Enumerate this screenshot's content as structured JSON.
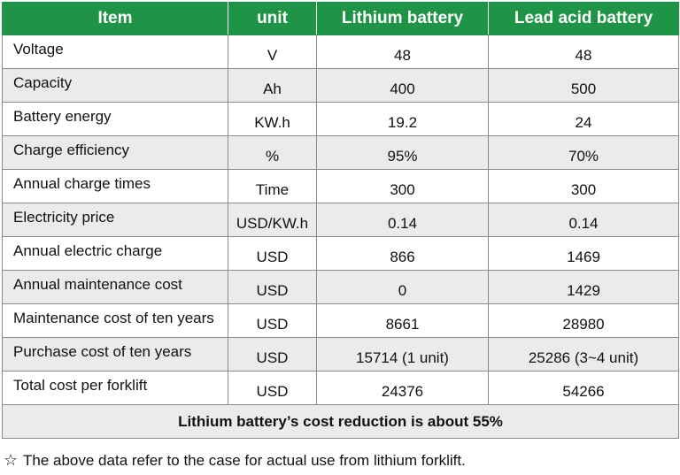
{
  "table": {
    "headers": [
      "Item",
      "unit",
      "Lithium battery",
      "Lead acid  battery"
    ],
    "rows": [
      {
        "item": "Voltage",
        "unit": "V",
        "lithium": "48",
        "lead": "48"
      },
      {
        "item": "Capacity",
        "unit": "Ah",
        "lithium": "400",
        "lead": "500"
      },
      {
        "item": "Battery energy",
        "unit": "KW.h",
        "lithium": "19.2",
        "lead": "24"
      },
      {
        "item": "Charge efficiency",
        "unit": "%",
        "lithium": "95%",
        "lead": "70%"
      },
      {
        "item": "Annual charge times",
        "unit": "Time",
        "lithium": "300",
        "lead": "300"
      },
      {
        "item": "Electricity price",
        "unit": "USD/KW.h",
        "lithium": "0.14",
        "lead": "0.14"
      },
      {
        "item": "Annual electric charge",
        "unit": "USD",
        "lithium": "866",
        "lead": "1469"
      },
      {
        "item": "Annual maintenance cost",
        "unit": "USD",
        "lithium": "0",
        "lead": "1429"
      },
      {
        "item": "Maintenance cost of ten years",
        "unit": "USD",
        "lithium": "8661",
        "lead": "28980"
      },
      {
        "item": "Purchase cost of ten years",
        "unit": "USD",
        "lithium": "15714 (1 unit)",
        "lead": "25286 (3~4 unit)"
      },
      {
        "item": "Total cost per forklift",
        "unit": "USD",
        "lithium": "24376",
        "lead": "54266"
      }
    ],
    "summary": "Lithium battery’s cost reduction is about 55%"
  },
  "footnote": {
    "icon": "star-outline-icon",
    "symbol": "☆",
    "text": "The above data refer to the case for actual use from lithium forklift."
  },
  "colors": {
    "header_bg": "#1f9446",
    "header_text": "#ffffff",
    "row_shade": "#ebebeb",
    "row_white": "#ffffff",
    "border": "#8a8a8a"
  }
}
